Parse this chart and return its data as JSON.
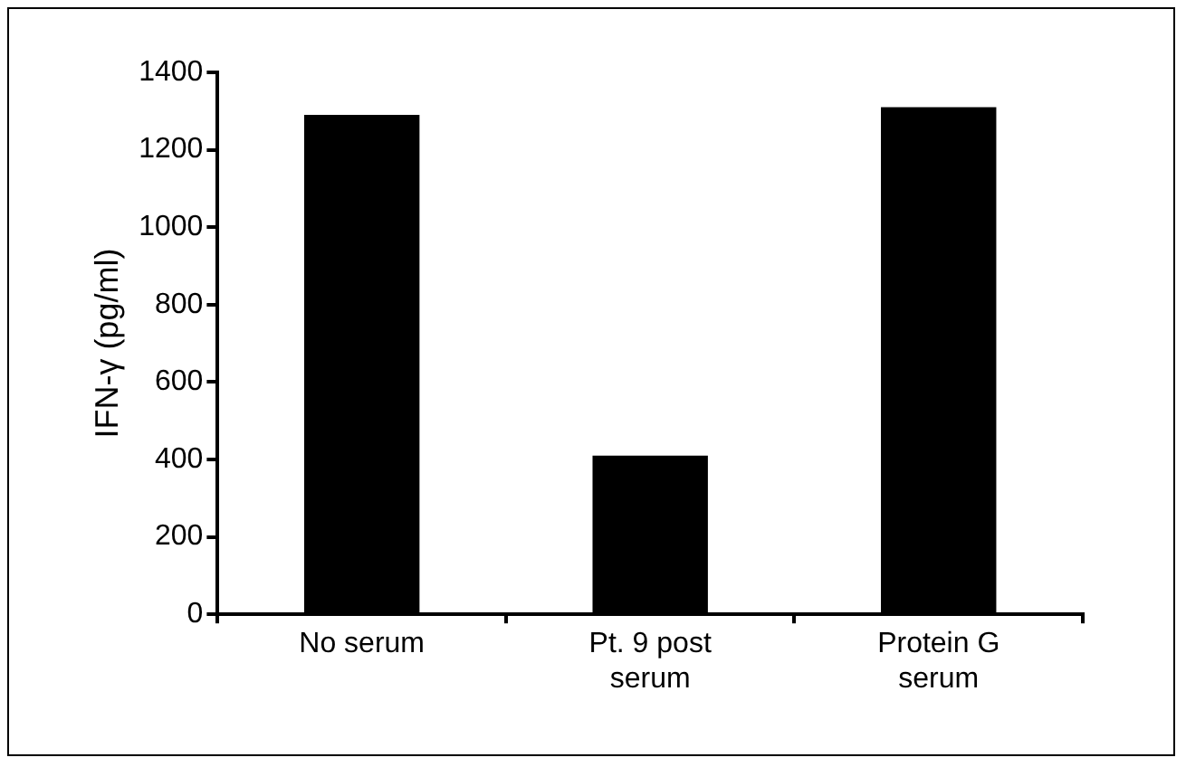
{
  "chart_data": {
    "type": "bar",
    "ylabel": "IFN-γ (pg/ml)",
    "categories": [
      "No serum",
      "Pt. 9 post serum",
      "Protein G serum"
    ],
    "values": [
      1290,
      410,
      1310
    ],
    "color": "#000000",
    "ylim": [
      0,
      1400
    ],
    "yticks": [
      0,
      200,
      400,
      600,
      800,
      1000,
      1200,
      1400
    ],
    "grid": false,
    "legend": false
  }
}
